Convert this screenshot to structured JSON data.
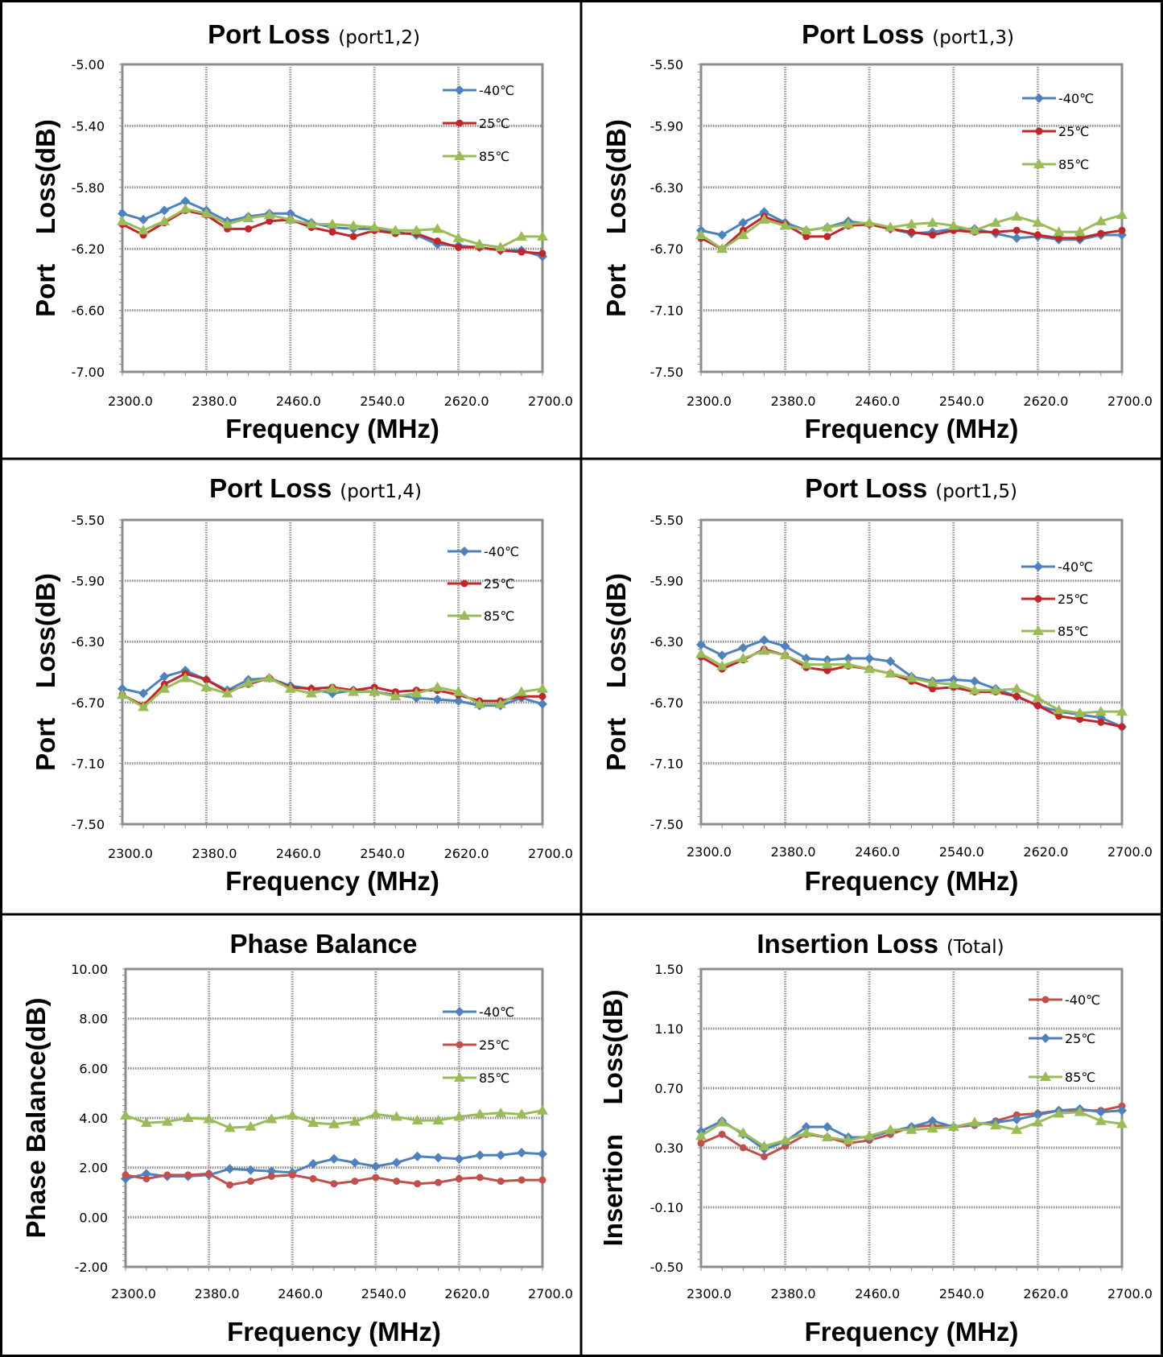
{
  "chart_data": [
    {
      "type": "line",
      "title": "Port Loss",
      "subtitle": "(port1,2)",
      "xlabel": "Frequency (MHz)",
      "ylabel": "Port    Loss(dB)",
      "ylim": [
        -7.0,
        -5.0
      ],
      "yticks": [
        "-5.00",
        "-5.40",
        "-5.80",
        "-6.20",
        "-6.60",
        "-7.00"
      ],
      "xticks": [
        "2300.0",
        "2380.0",
        "2460.0",
        "2540.0",
        "2620.0",
        "2700.0"
      ],
      "xlim": [
        2300,
        2700
      ],
      "legend_position": "top-right",
      "grid": true,
      "x": [
        2300,
        2320,
        2340,
        2360,
        2380,
        2400,
        2420,
        2440,
        2460,
        2480,
        2500,
        2520,
        2540,
        2560,
        2580,
        2600,
        2620,
        2640,
        2660,
        2680,
        2700
      ],
      "series": [
        {
          "name": "-40℃",
          "color": "#4F81BD",
          "marker": "diamond",
          "values": [
            -5.97,
            -6.01,
            -5.95,
            -5.89,
            -5.95,
            -6.02,
            -5.99,
            -5.97,
            -5.97,
            -6.03,
            -6.06,
            -6.07,
            -6.07,
            -6.09,
            -6.11,
            -6.17,
            -6.18,
            -6.19,
            -6.21,
            -6.21,
            -6.25
          ]
        },
        {
          "name": "25℃",
          "color": "#C0272D",
          "marker": "circle",
          "values": [
            -6.04,
            -6.11,
            -6.03,
            -5.95,
            -5.98,
            -6.07,
            -6.07,
            -6.02,
            -6.01,
            -6.06,
            -6.09,
            -6.12,
            -6.08,
            -6.1,
            -6.1,
            -6.15,
            -6.19,
            -6.19,
            -6.21,
            -6.22,
            -6.23
          ]
        },
        {
          "name": "85℃",
          "color": "#9BBB59",
          "marker": "triangle",
          "values": [
            -6.02,
            -6.08,
            -6.02,
            -5.94,
            -5.97,
            -6.04,
            -6.0,
            -5.98,
            -6.01,
            -6.04,
            -6.04,
            -6.05,
            -6.06,
            -6.08,
            -6.08,
            -6.07,
            -6.13,
            -6.17,
            -6.19,
            -6.12,
            -6.12
          ]
        }
      ]
    },
    {
      "type": "line",
      "title": "Port Loss",
      "subtitle": "(port1,3)",
      "xlabel": "Frequency (MHz)",
      "ylabel": "Port    Loss(dB)",
      "ylim": [
        -7.5,
        -5.5
      ],
      "yticks": [
        "-5.50",
        "-5.90",
        "-6.30",
        "-6.70",
        "-7.10",
        "-7.50"
      ],
      "xticks": [
        "2300.0",
        "2380.0",
        "2460.0",
        "2540.0",
        "2620.0",
        "2700.0"
      ],
      "xlim": [
        2300,
        2700
      ],
      "legend_position": "top-right",
      "grid": true,
      "x": [
        2300,
        2320,
        2340,
        2360,
        2380,
        2400,
        2420,
        2440,
        2460,
        2480,
        2500,
        2520,
        2540,
        2560,
        2580,
        2600,
        2620,
        2640,
        2660,
        2680,
        2700
      ],
      "series": [
        {
          "name": "-40℃",
          "color": "#4F81BD",
          "marker": "diamond",
          "values": [
            -6.58,
            -6.61,
            -6.53,
            -6.46,
            -6.53,
            -6.58,
            -6.56,
            -6.52,
            -6.54,
            -6.57,
            -6.6,
            -6.59,
            -6.57,
            -6.57,
            -6.6,
            -6.63,
            -6.62,
            -6.64,
            -6.64,
            -6.61,
            -6.61
          ]
        },
        {
          "name": "25℃",
          "color": "#C0272D",
          "marker": "circle",
          "values": [
            -6.63,
            -6.7,
            -6.58,
            -6.49,
            -6.54,
            -6.62,
            -6.62,
            -6.55,
            -6.54,
            -6.57,
            -6.59,
            -6.61,
            -6.58,
            -6.59,
            -6.59,
            -6.58,
            -6.61,
            -6.63,
            -6.63,
            -6.6,
            -6.58
          ]
        },
        {
          "name": "85℃",
          "color": "#9BBB59",
          "marker": "triangle",
          "values": [
            -6.61,
            -6.7,
            -6.61,
            -6.51,
            -6.55,
            -6.58,
            -6.56,
            -6.54,
            -6.53,
            -6.56,
            -6.54,
            -6.53,
            -6.55,
            -6.58,
            -6.53,
            -6.49,
            -6.53,
            -6.59,
            -6.59,
            -6.52,
            -6.48
          ]
        }
      ]
    },
    {
      "type": "line",
      "title": "Port Loss",
      "subtitle": "(port1,4)",
      "xlabel": "Frequency (MHz)",
      "ylabel": "Port    Loss(dB)",
      "ylim": [
        -7.5,
        -5.5
      ],
      "yticks": [
        "-5.50",
        "-5.90",
        "-6.30",
        "-6.70",
        "-7.10",
        "-7.50"
      ],
      "xticks": [
        "2300.0",
        "2380.0",
        "2460.0",
        "2540.0",
        "2620.0",
        "2700.0"
      ],
      "xlim": [
        2300,
        2700
      ],
      "legend_position": "top-right",
      "grid": true,
      "x": [
        2300,
        2320,
        2340,
        2360,
        2380,
        2400,
        2420,
        2440,
        2460,
        2480,
        2500,
        2520,
        2540,
        2560,
        2580,
        2600,
        2620,
        2640,
        2660,
        2680,
        2700
      ],
      "series": [
        {
          "name": "-40℃",
          "color": "#4F81BD",
          "marker": "diamond",
          "values": [
            -6.61,
            -6.64,
            -6.53,
            -6.49,
            -6.55,
            -6.62,
            -6.55,
            -6.54,
            -6.59,
            -6.61,
            -6.64,
            -6.62,
            -6.63,
            -6.65,
            -6.67,
            -6.68,
            -6.69,
            -6.72,
            -6.72,
            -6.67,
            -6.71
          ]
        },
        {
          "name": "25℃",
          "color": "#C0272D",
          "marker": "circle",
          "values": [
            -6.65,
            -6.72,
            -6.58,
            -6.51,
            -6.55,
            -6.63,
            -6.58,
            -6.54,
            -6.6,
            -6.61,
            -6.6,
            -6.62,
            -6.6,
            -6.63,
            -6.62,
            -6.62,
            -6.65,
            -6.69,
            -6.69,
            -6.66,
            -6.66
          ]
        },
        {
          "name": "85℃",
          "color": "#9BBB59",
          "marker": "triangle",
          "values": [
            -6.65,
            -6.73,
            -6.61,
            -6.54,
            -6.6,
            -6.64,
            -6.57,
            -6.54,
            -6.61,
            -6.64,
            -6.61,
            -6.63,
            -6.63,
            -6.66,
            -6.64,
            -6.6,
            -6.63,
            -6.71,
            -6.71,
            -6.63,
            -6.61
          ]
        }
      ]
    },
    {
      "type": "line",
      "title": "Port Loss",
      "subtitle": "(port1,5)",
      "xlabel": "Frequency (MHz)",
      "ylabel": "Port    Loss(dB)",
      "ylim": [
        -7.5,
        -5.5
      ],
      "yticks": [
        "-5.50",
        "-5.90",
        "-6.30",
        "-6.70",
        "-7.10",
        "-7.50"
      ],
      "xticks": [
        "2300.0",
        "2380.0",
        "2460.0",
        "2540.0",
        "2620.0",
        "2700.0"
      ],
      "xlim": [
        2300,
        2700
      ],
      "legend_position": "top-right",
      "grid": true,
      "x": [
        2300,
        2320,
        2340,
        2360,
        2380,
        2400,
        2420,
        2440,
        2460,
        2480,
        2500,
        2520,
        2540,
        2560,
        2580,
        2600,
        2620,
        2640,
        2660,
        2680,
        2700
      ],
      "series": [
        {
          "name": "-40℃",
          "color": "#4F81BD",
          "marker": "diamond",
          "values": [
            -6.32,
            -6.39,
            -6.34,
            -6.29,
            -6.33,
            -6.41,
            -6.42,
            -6.41,
            -6.41,
            -6.43,
            -6.53,
            -6.56,
            -6.55,
            -6.56,
            -6.61,
            -6.66,
            -6.72,
            -6.76,
            -6.78,
            -6.8,
            -6.86
          ]
        },
        {
          "name": "25℃",
          "color": "#C0272D",
          "marker": "circle",
          "values": [
            -6.4,
            -6.48,
            -6.42,
            -6.35,
            -6.39,
            -6.47,
            -6.49,
            -6.46,
            -6.48,
            -6.51,
            -6.56,
            -6.61,
            -6.6,
            -6.63,
            -6.63,
            -6.66,
            -6.72,
            -6.79,
            -6.81,
            -6.83,
            -6.86
          ]
        },
        {
          "name": "85℃",
          "color": "#9BBB59",
          "marker": "triangle",
          "values": [
            -6.38,
            -6.46,
            -6.41,
            -6.36,
            -6.39,
            -6.45,
            -6.45,
            -6.45,
            -6.48,
            -6.51,
            -6.54,
            -6.57,
            -6.58,
            -6.62,
            -6.62,
            -6.61,
            -6.67,
            -6.75,
            -6.77,
            -6.76,
            -6.76
          ]
        }
      ]
    },
    {
      "type": "line",
      "title": "Phase Balance",
      "subtitle": "",
      "xlabel": "Frequency (MHz)",
      "ylabel": "Phase Balance(dB)",
      "ylim": [
        -2.0,
        10.0
      ],
      "yticks": [
        "10.00",
        "8.00",
        "6.00",
        "4.00",
        "2.00",
        "0.00",
        "-2.00"
      ],
      "xticks": [
        "2300.0",
        "2380.0",
        "2460.0",
        "2540.0",
        "2620.0",
        "2700.0"
      ],
      "xlim": [
        2300,
        2700
      ],
      "legend_position": "right",
      "grid": true,
      "x": [
        2300,
        2320,
        2340,
        2360,
        2380,
        2400,
        2420,
        2440,
        2460,
        2480,
        2500,
        2520,
        2540,
        2560,
        2580,
        2600,
        2620,
        2640,
        2660,
        2680,
        2700
      ],
      "series": [
        {
          "name": "-40℃",
          "color": "#4F81BD",
          "marker": "diamond",
          "values": [
            1.55,
            1.75,
            1.65,
            1.65,
            1.7,
            1.95,
            1.9,
            1.85,
            1.8,
            2.15,
            2.35,
            2.2,
            2.05,
            2.2,
            2.45,
            2.4,
            2.35,
            2.5,
            2.5,
            2.6,
            2.55
          ]
        },
        {
          "name": "25℃",
          "color": "#C0504D",
          "marker": "circle",
          "values": [
            1.7,
            1.55,
            1.7,
            1.7,
            1.75,
            1.3,
            1.45,
            1.65,
            1.7,
            1.55,
            1.35,
            1.45,
            1.6,
            1.45,
            1.35,
            1.4,
            1.55,
            1.6,
            1.45,
            1.5,
            1.5
          ]
        },
        {
          "name": "85℃",
          "color": "#9BBB59",
          "marker": "triangle",
          "values": [
            4.1,
            3.8,
            3.85,
            4.0,
            3.95,
            3.6,
            3.65,
            3.95,
            4.1,
            3.8,
            3.75,
            3.85,
            4.15,
            4.05,
            3.9,
            3.9,
            4.05,
            4.15,
            4.2,
            4.15,
            4.3
          ]
        }
      ]
    },
    {
      "type": "line",
      "title": "Insertion Loss",
      "subtitle": "(Total)",
      "xlabel": "Frequency (MHz)",
      "ylabel": "Insertion    Loss(dB)",
      "ylim": [
        -0.5,
        1.5
      ],
      "yticks": [
        "1.50",
        "1.10",
        "0.70",
        "0.30",
        "-0.10",
        "-0.50"
      ],
      "xticks": [
        "2300.0",
        "2380.0",
        "2460.0",
        "2540.0",
        "2620.0",
        "2700.0"
      ],
      "xlim": [
        2300,
        2700
      ],
      "legend_position": "right",
      "grid": true,
      "x": [
        2300,
        2320,
        2340,
        2360,
        2380,
        2400,
        2420,
        2440,
        2460,
        2480,
        2500,
        2520,
        2540,
        2560,
        2580,
        2600,
        2620,
        2640,
        2660,
        2680,
        2700
      ],
      "series": [
        {
          "name": "-40℃",
          "color": "#C0504D",
          "marker": "circle",
          "values": [
            0.33,
            0.39,
            0.3,
            0.24,
            0.31,
            0.39,
            0.37,
            0.33,
            0.35,
            0.39,
            0.44,
            0.45,
            0.44,
            0.45,
            0.48,
            0.52,
            0.53,
            0.55,
            0.55,
            0.55,
            0.58
          ]
        },
        {
          "name": "25℃",
          "color": "#4F81BD",
          "marker": "diamond",
          "values": [
            0.41,
            0.48,
            0.39,
            0.29,
            0.34,
            0.44,
            0.44,
            0.37,
            0.37,
            0.41,
            0.44,
            0.48,
            0.44,
            0.46,
            0.47,
            0.49,
            0.52,
            0.55,
            0.56,
            0.54,
            0.55
          ]
        },
        {
          "name": "85℃",
          "color": "#9BBB59",
          "marker": "triangle",
          "values": [
            0.38,
            0.47,
            0.4,
            0.31,
            0.35,
            0.4,
            0.37,
            0.35,
            0.38,
            0.42,
            0.42,
            0.43,
            0.44,
            0.47,
            0.45,
            0.42,
            0.47,
            0.53,
            0.54,
            0.48,
            0.46
          ]
        }
      ]
    }
  ]
}
